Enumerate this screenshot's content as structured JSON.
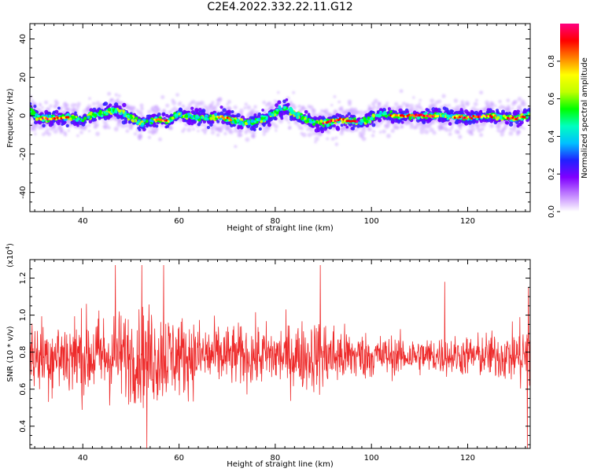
{
  "title": "C2E4.2022.332.22.11.G12",
  "chart_data": [
    {
      "type": "heatmap",
      "xlabel": "Height of straight line (km)",
      "ylabel": "Frequency (Hz)",
      "xlim": [
        29,
        133
      ],
      "ylim": [
        -50,
        48
      ],
      "xticks": [
        40,
        60,
        80,
        100,
        120
      ],
      "yticks": [
        -40,
        -20,
        0,
        20,
        40
      ],
      "colorbar": {
        "label": "Normalized spectral amplitude",
        "range": [
          0.0,
          1.0
        ],
        "ticks": [
          "0.0",
          "0.2",
          "0.4",
          "0.6",
          "0.8"
        ],
        "tick_values": [
          0.0,
          0.2,
          0.4,
          0.6,
          0.8
        ],
        "colormap": [
          "#ffffff",
          "#c080ff",
          "#8000ff",
          "#2020ff",
          "#00c0ff",
          "#00ffc0",
          "#00ff00",
          "#c0ff00",
          "#ffff00",
          "#ff8000",
          "#ff0000",
          "#ff0080"
        ]
      },
      "ridge": {
        "height_km": [
          29,
          31,
          34,
          37,
          40,
          42,
          44,
          46,
          48,
          50,
          52,
          55,
          58,
          60,
          63,
          66,
          69,
          72,
          75,
          78,
          80,
          82,
          84,
          86,
          88,
          90,
          93,
          96,
          99,
          102,
          105,
          110,
          115,
          120,
          125,
          128,
          130,
          133
        ],
        "freq_hz": [
          3,
          -1.5,
          -1.5,
          -1,
          -2.5,
          0.5,
          1.5,
          3,
          2,
          -1,
          -4,
          -2,
          -2.5,
          1,
          -1,
          -1,
          -0.5,
          -3,
          -4,
          -1,
          2,
          4,
          1.5,
          -1.5,
          -3.5,
          -4,
          -2,
          -3,
          -2.5,
          1,
          0,
          0,
          0,
          -1,
          0,
          -1,
          -1.5,
          0.5
        ],
        "peak_segments_km": [
          [
            31,
            37
          ],
          [
            55,
            58
          ],
          [
            68,
            71
          ],
          [
            90,
            97
          ],
          [
            104,
            114
          ],
          [
            117,
            126
          ],
          [
            128,
            132
          ]
        ]
      }
    },
    {
      "type": "line",
      "xlabel": "Height of straight line (km)",
      "ylabel": "SNR (10 * v/v)",
      "y_multiplier": "(x10",
      "y_multiplier_exp": "4",
      "y_multiplier_close": ")",
      "xlim": [
        29,
        133
      ],
      "ylim": [
        0.28,
        1.3
      ],
      "xticks": [
        40,
        60,
        80,
        100,
        120
      ],
      "yticks": [
        0.4,
        0.6,
        0.8,
        1.0,
        1.2
      ],
      "series": [
        {
          "color": "#ee2a2a",
          "mean": 0.78,
          "envelope_km": [
            29,
            35,
            45,
            50,
            55,
            60,
            70,
            80,
            90,
            95,
            100,
            110,
            120,
            130,
            133
          ],
          "envelope_amp": [
            0.22,
            0.24,
            0.27,
            0.27,
            0.3,
            0.24,
            0.18,
            0.19,
            0.22,
            0.17,
            0.13,
            0.11,
            0.12,
            0.16,
            0.3
          ],
          "samples": 1400,
          "notable_points": [
            {
              "x": 46.7,
              "y": 1.27
            },
            {
              "x": 52.2,
              "y": 1.27
            },
            {
              "x": 53.3,
              "y": 0.28
            },
            {
              "x": 56.8,
              "y": 1.27
            },
            {
              "x": 89.3,
              "y": 1.27
            },
            {
              "x": 132.4,
              "y": 0.28
            },
            {
              "x": 132.6,
              "y": 1.15
            },
            {
              "x": 115.2,
              "y": 1.18
            }
          ]
        }
      ]
    }
  ]
}
